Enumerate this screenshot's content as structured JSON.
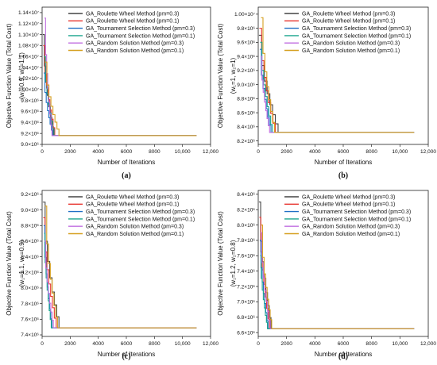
{
  "colors": {
    "GA_Roulette Wheel Method (pm=0.3)": "#444444",
    "GA_Roulette Wheel Method (pm=0.1)": "#e8352f",
    "GA_Tournament Selection Method (pm=0.3)": "#1f6fc5",
    "GA_Tournament Selection Method (pm=0.1)": "#1aa58e",
    "GA_Random Solution Method (pm=0.3)": "#c06ee0",
    "GA_Random Solution Method (pm=0.1)": "#d6a020"
  },
  "chart_data": [
    {
      "type": "line",
      "caption": "(a)",
      "xlabel": "Number of Iterations",
      "ylabel": "Objective Function Value (Total Cost)",
      "ylabel2": "(w₁=0.9, w₂=1.1)",
      "xlim": [
        0,
        12000
      ],
      "ylim": [
        9000000,
        11500000
      ],
      "xticks": [
        "0",
        "2000",
        "4000",
        "6000",
        "8000",
        "10,000",
        "12,000"
      ],
      "yticks": [
        {
          "v": 9000000,
          "label": "9.0×10⁶"
        },
        {
          "v": 9200000,
          "label": "9.2×10⁶"
        },
        {
          "v": 9400000,
          "label": "9.4×10⁶"
        },
        {
          "v": 9600000,
          "label": "9.6×10⁶"
        },
        {
          "v": 9800000,
          "label": "9.8×10⁶"
        },
        {
          "v": 10000000,
          "label": "1.00×10⁷"
        },
        {
          "v": 10200000,
          "label": "1.02×10⁷"
        },
        {
          "v": 10400000,
          "label": "1.04×10⁷"
        },
        {
          "v": 10600000,
          "label": "1.06×10⁷"
        },
        {
          "v": 10800000,
          "label": "1.08×10⁷"
        },
        {
          "v": 11000000,
          "label": "1.10×10⁷"
        },
        {
          "v": 11200000,
          "label": "1.12×10⁷"
        },
        {
          "v": 11400000,
          "label": "1.14×10⁷"
        }
      ],
      "final": 9160000,
      "x_end": 11000,
      "series": [
        {
          "name": "GA_Roulette Wheel Method (pm=0.3)",
          "start": 11000000,
          "conv": 800
        },
        {
          "name": "GA_Roulette Wheel Method (pm=0.1)",
          "start": 10800000,
          "conv": 900
        },
        {
          "name": "GA_Tournament Selection Method (pm=0.3)",
          "start": 10300000,
          "conv": 750
        },
        {
          "name": "GA_Tournament Selection Method (pm=0.1)",
          "start": 10600000,
          "conv": 850
        },
        {
          "name": "GA_Random Solution Method (pm=0.3)",
          "start": 11300000,
          "conv": 700
        },
        {
          "name": "GA_Random Solution Method (pm=0.1)",
          "start": 10500000,
          "conv": 1200
        }
      ]
    },
    {
      "type": "line",
      "caption": "(b)",
      "xlabel": "Number of Iterations",
      "ylabel": "Objective Function Value (Total Cost)",
      "ylabel2": "(w₁=1, w₂=1)",
      "xlim": [
        0,
        12000
      ],
      "ylim": [
        8150000,
        10100000
      ],
      "xticks": [
        "0",
        "2000",
        "4000",
        "6000",
        "8000",
        "10,000",
        "12,000"
      ],
      "yticks": [
        {
          "v": 8200000,
          "label": "8.2×10⁶"
        },
        {
          "v": 8400000,
          "label": "8.4×10⁶"
        },
        {
          "v": 8600000,
          "label": "8.6×10⁶"
        },
        {
          "v": 8800000,
          "label": "8.8×10⁶"
        },
        {
          "v": 9000000,
          "label": "9.0×10⁶"
        },
        {
          "v": 9200000,
          "label": "9.2×10⁶"
        },
        {
          "v": 9400000,
          "label": "9.4×10⁶"
        },
        {
          "v": 9600000,
          "label": "9.6×10⁶"
        },
        {
          "v": 9800000,
          "label": "9.8×10⁶"
        },
        {
          "v": 10000000,
          "label": "1.00×10⁷"
        }
      ],
      "final": 8320000,
      "x_end": 11000,
      "series": [
        {
          "name": "GA_Roulette Wheel Method (pm=0.3)",
          "start": 9700000,
          "conv": 1400
        },
        {
          "name": "GA_Roulette Wheel Method (pm=0.1)",
          "start": 9800000,
          "conv": 1200
        },
        {
          "name": "GA_Tournament Selection Method (pm=0.3)",
          "start": 9500000,
          "conv": 900
        },
        {
          "name": "GA_Tournament Selection Method (pm=0.1)",
          "start": 9600000,
          "conv": 1000
        },
        {
          "name": "GA_Random Solution Method (pm=0.3)",
          "start": 9400000,
          "conv": 800
        },
        {
          "name": "GA_Random Solution Method (pm=0.1)",
          "start": 9950000,
          "conv": 1150
        }
      ]
    },
    {
      "type": "line",
      "caption": "(c)",
      "xlabel": "Number of Iterations",
      "ylabel": "Objective Function Value (Total Cost)",
      "ylabel2": "(w₁=1.1, w₂=0.9)",
      "xlim": [
        0,
        12000
      ],
      "ylim": [
        7380000,
        9250000
      ],
      "xticks": [
        "0",
        "2000",
        "4000",
        "6000",
        "8000",
        "10,000",
        "12,000"
      ],
      "yticks": [
        {
          "v": 7400000,
          "label": "7.4×10⁶"
        },
        {
          "v": 7600000,
          "label": "7.6×10⁶"
        },
        {
          "v": 7800000,
          "label": "7.8×10⁶"
        },
        {
          "v": 8000000,
          "label": "8.0×10⁶"
        },
        {
          "v": 8200000,
          "label": "8.2×10⁶"
        },
        {
          "v": 8400000,
          "label": "8.4×10⁶"
        },
        {
          "v": 8600000,
          "label": "8.6×10⁶"
        },
        {
          "v": 8800000,
          "label": "8.8×10⁶"
        },
        {
          "v": 9000000,
          "label": "9.0×10⁶"
        },
        {
          "v": 9200000,
          "label": "9.2×10⁶"
        }
      ],
      "final": 7490000,
      "x_end": 11000,
      "series": [
        {
          "name": "GA_Roulette Wheel Method (pm=0.3)",
          "start": 9100000,
          "conv": 1200
        },
        {
          "name": "GA_Roulette Wheel Method (pm=0.1)",
          "start": 8900000,
          "conv": 1000
        },
        {
          "name": "GA_Tournament Selection Method (pm=0.3)",
          "start": 8800000,
          "conv": 700
        },
        {
          "name": "GA_Tournament Selection Method (pm=0.1)",
          "start": 8700000,
          "conv": 650
        },
        {
          "name": "GA_Random Solution Method (pm=0.3)",
          "start": 8600000,
          "conv": 800
        },
        {
          "name": "GA_Random Solution Method (pm=0.1)",
          "start": 9050000,
          "conv": 1100
        }
      ]
    },
    {
      "type": "line",
      "caption": "(d)",
      "xlabel": "Number of Iterations",
      "ylabel": "Objective Function Value (Total Cost)",
      "ylabel2": "(w₁=1.2, w₂=0.8)",
      "xlim": [
        0,
        12000
      ],
      "ylim": [
        6550000,
        8450000
      ],
      "xticks": [
        "0",
        "2000",
        "4000",
        "6000",
        "8000",
        "10,000",
        "12,000"
      ],
      "yticks": [
        {
          "v": 6600000,
          "label": "6.6×10⁶"
        },
        {
          "v": 6800000,
          "label": "6.8×10⁶"
        },
        {
          "v": 7000000,
          "label": "7.0×10⁶"
        },
        {
          "v": 7200000,
          "label": "7.2×10⁶"
        },
        {
          "v": 7400000,
          "label": "7.4×10⁶"
        },
        {
          "v": 7600000,
          "label": "7.6×10⁶"
        },
        {
          "v": 7800000,
          "label": "7.8×10⁶"
        },
        {
          "v": 8000000,
          "label": "8.0×10⁶"
        },
        {
          "v": 8200000,
          "label": "8.2×10⁶"
        },
        {
          "v": 8400000,
          "label": "8.4×10⁶"
        }
      ],
      "final": 6650000,
      "x_end": 11000,
      "series": [
        {
          "name": "GA_Roulette Wheel Method (pm=0.3)",
          "start": 8300000,
          "conv": 900
        },
        {
          "name": "GA_Roulette Wheel Method (pm=0.1)",
          "start": 8100000,
          "conv": 800
        },
        {
          "name": "GA_Tournament Selection Method (pm=0.3)",
          "start": 7800000,
          "conv": 700
        },
        {
          "name": "GA_Tournament Selection Method (pm=0.1)",
          "start": 7600000,
          "conv": 650
        },
        {
          "name": "GA_Random Solution Method (pm=0.3)",
          "start": 7900000,
          "conv": 850
        },
        {
          "name": "GA_Random Solution Method (pm=0.1)",
          "start": 8000000,
          "conv": 950
        }
      ]
    }
  ]
}
